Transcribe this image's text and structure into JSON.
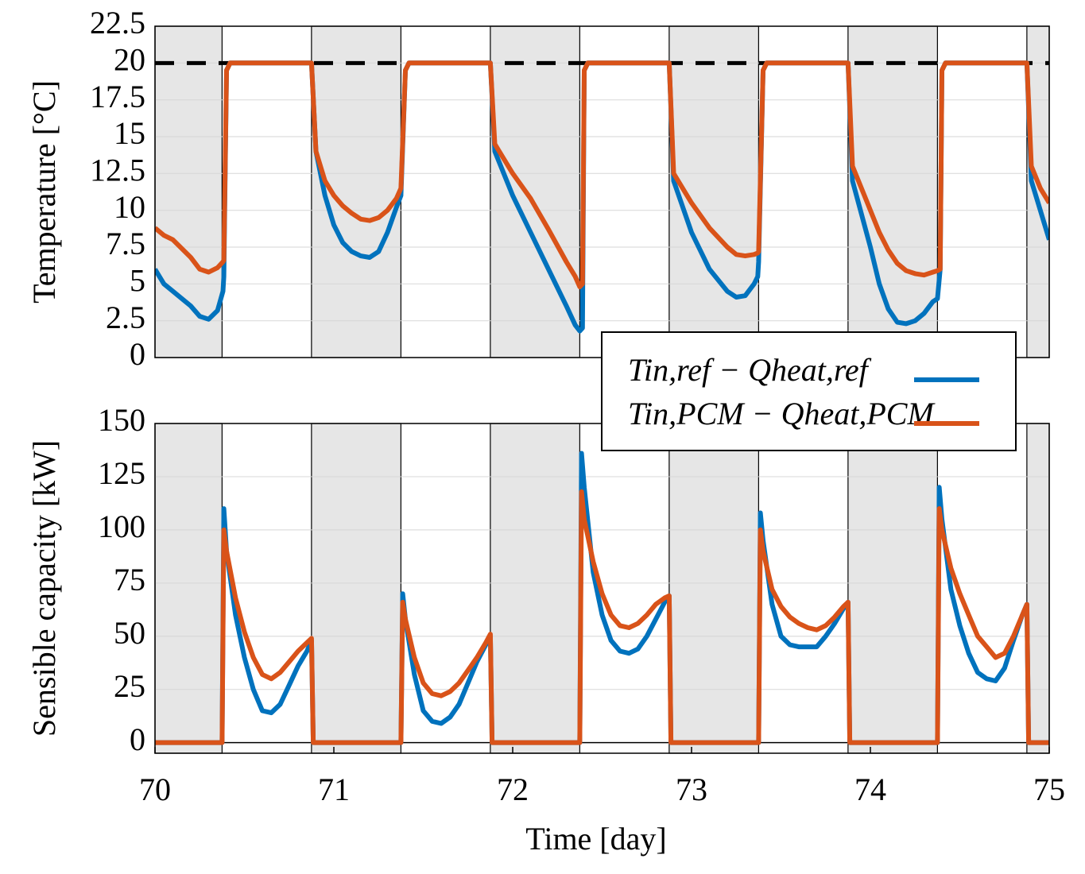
{
  "chart_data": [
    {
      "type": "line",
      "ylabel": "Temperature [°C]",
      "xlim": [
        70,
        75
      ],
      "ylim": [
        0,
        22.5
      ],
      "yticks": [
        0,
        2.5,
        5,
        7.5,
        10,
        12.5,
        15,
        17.5,
        20,
        22.5
      ],
      "grid": true,
      "reference_line": 20,
      "shaded_intervals": [
        [
          70,
          70.375
        ],
        [
          70.875,
          71.375
        ],
        [
          71.875,
          72.375
        ],
        [
          72.875,
          73.375
        ],
        [
          73.875,
          74.375
        ],
        [
          74.875,
          75
        ]
      ],
      "x": [
        70,
        70.05,
        70.1,
        70.2,
        70.25,
        70.3,
        70.35,
        70.38,
        70.385,
        70.4,
        70.42,
        70.875,
        70.9,
        70.95,
        71,
        71.05,
        71.1,
        71.15,
        71.2,
        71.25,
        71.3,
        71.35,
        71.375,
        71.4,
        71.42,
        71.875,
        71.9,
        72,
        72.1,
        72.2,
        72.3,
        72.35,
        72.375,
        72.39,
        72.4,
        72.42,
        72.875,
        72.9,
        73,
        73.1,
        73.2,
        73.25,
        73.3,
        73.35,
        73.37,
        73.375,
        73.4,
        73.42,
        73.875,
        73.9,
        74,
        74.05,
        74.1,
        74.15,
        74.2,
        74.25,
        74.3,
        74.35,
        74.375,
        74.39,
        74.4,
        74.42,
        74.875,
        74.9,
        74.95,
        75
      ],
      "series": [
        {
          "color": "#0072bd",
          "values": [
            6,
            5,
            4.5,
            3.5,
            2.8,
            2.6,
            3.2,
            4.5,
            5.5,
            19.5,
            20,
            20,
            14,
            11,
            9,
            7.8,
            7.2,
            6.9,
            6.8,
            7.2,
            8.5,
            10.2,
            11,
            19.5,
            20,
            20,
            14,
            11,
            8.5,
            6,
            3.5,
            2.2,
            1.8,
            2,
            19.5,
            20,
            20,
            12,
            8.5,
            6,
            4.5,
            4.1,
            4.2,
            5,
            5.5,
            6.5,
            19.5,
            20,
            20,
            12,
            7.5,
            5,
            3.3,
            2.4,
            2.3,
            2.5,
            3,
            3.8,
            4,
            6,
            19.5,
            20,
            20,
            12,
            10,
            8
          ]
        },
        {
          "color": "#d95319",
          "values": [
            8.8,
            8.3,
            8,
            6.8,
            6,
            5.8,
            6.1,
            6.5,
            6.6,
            19.5,
            20,
            20,
            14,
            12,
            11,
            10.3,
            9.8,
            9.4,
            9.3,
            9.5,
            10,
            10.8,
            11.5,
            19.5,
            20,
            20,
            14.5,
            12.5,
            10.8,
            8.7,
            6.5,
            5.5,
            4.8,
            5,
            19.5,
            20,
            20,
            12.5,
            10.5,
            8.8,
            7.5,
            7,
            6.9,
            7,
            7.1,
            7.2,
            19.5,
            20,
            20,
            13,
            10,
            8.5,
            7.3,
            6.4,
            5.9,
            5.7,
            5.6,
            5.8,
            5.9,
            6,
            19.5,
            20,
            20,
            13,
            11.5,
            10.5
          ]
        }
      ]
    },
    {
      "type": "line",
      "ylabel": "Sensible capacity [kW]",
      "xlabel": "Time [day]",
      "xlim": [
        70,
        75
      ],
      "xticks": [
        70,
        71,
        72,
        73,
        74,
        75
      ],
      "ylim": [
        -5,
        150
      ],
      "yticks": [
        0,
        25,
        50,
        75,
        100,
        125,
        150
      ],
      "grid": true,
      "shaded_intervals": [
        [
          70,
          70.375
        ],
        [
          70.875,
          71.375
        ],
        [
          71.875,
          72.375
        ],
        [
          72.875,
          73.375
        ],
        [
          73.875,
          74.375
        ],
        [
          74.875,
          75
        ]
      ],
      "x": [
        70,
        70.375,
        70.385,
        70.4,
        70.45,
        70.5,
        70.55,
        70.6,
        70.65,
        70.7,
        70.75,
        70.8,
        70.85,
        70.875,
        70.885,
        71.375,
        71.385,
        71.4,
        71.45,
        71.5,
        71.55,
        71.6,
        71.65,
        71.7,
        71.75,
        71.8,
        71.85,
        71.875,
        71.885,
        72.375,
        72.385,
        72.4,
        72.45,
        72.5,
        72.55,
        72.6,
        72.65,
        72.7,
        72.75,
        72.8,
        72.85,
        72.875,
        72.885,
        73.375,
        73.385,
        73.4,
        73.45,
        73.5,
        73.55,
        73.6,
        73.65,
        73.7,
        73.75,
        73.8,
        73.85,
        73.875,
        73.885,
        74.375,
        74.385,
        74.4,
        74.45,
        74.5,
        74.55,
        74.6,
        74.65,
        74.7,
        74.75,
        74.8,
        74.85,
        74.875,
        74.885,
        75
      ],
      "series": [
        {
          "name": "Tin,ref − Qheat,ref",
          "color": "#0072bd",
          "values": [
            0,
            0,
            110,
            90,
            60,
            40,
            25,
            15,
            14,
            18,
            27,
            36,
            43,
            48,
            0,
            0,
            70,
            58,
            32,
            15,
            10,
            9,
            12,
            18,
            28,
            38,
            46,
            50,
            0,
            0,
            136,
            120,
            80,
            60,
            48,
            43,
            42,
            44,
            50,
            58,
            66,
            69,
            0,
            0,
            108,
            95,
            65,
            50,
            46,
            45,
            45,
            45,
            50,
            56,
            63,
            66,
            0,
            0,
            120,
            105,
            72,
            55,
            42,
            33,
            30,
            29,
            35,
            48,
            60,
            65,
            0,
            0
          ]
        },
        {
          "name": "Tin,PCM − Qheat,PCM",
          "color": "#d95319",
          "values": [
            0,
            0,
            100,
            90,
            68,
            52,
            40,
            32,
            30,
            33,
            38,
            43,
            47,
            49,
            0,
            0,
            66,
            58,
            40,
            28,
            23,
            22,
            24,
            28,
            34,
            40,
            47,
            51,
            0,
            0,
            118,
            105,
            85,
            70,
            60,
            55,
            54,
            56,
            60,
            65,
            68,
            69,
            0,
            0,
            100,
            90,
            72,
            64,
            59,
            56,
            54,
            53,
            55,
            59,
            64,
            66,
            0,
            0,
            110,
            100,
            82,
            70,
            60,
            50,
            45,
            40,
            42,
            50,
            60,
            65,
            0,
            0
          ]
        }
      ]
    }
  ]
}
